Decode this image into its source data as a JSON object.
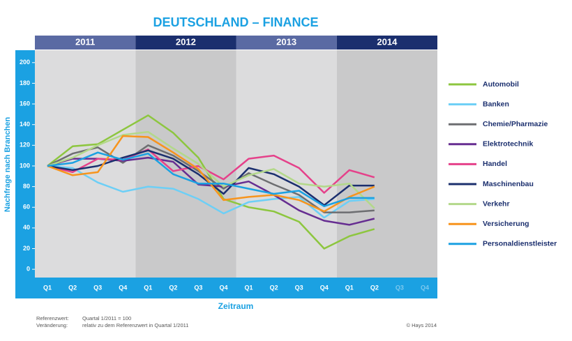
{
  "chart_data": {
    "type": "line",
    "title": "DEUTSCHLAND – FINANCE",
    "years": [
      "2011",
      "2012",
      "2013",
      "2014"
    ],
    "categories": [
      "Q1",
      "Q2",
      "Q3",
      "Q4",
      "Q1",
      "Q2",
      "Q3",
      "Q4",
      "Q1",
      "Q2",
      "Q3",
      "Q4",
      "Q1",
      "Q2",
      "Q3",
      "Q4"
    ],
    "y_label": "Nachfrage nach Branchen",
    "x_label": "Zeitraum",
    "ylim": [
      -8,
      212
    ],
    "yticks": [
      0,
      20,
      40,
      60,
      80,
      100,
      120,
      140,
      160,
      180,
      200
    ],
    "series": [
      {
        "name": "Automobil",
        "color": "#8dc63f",
        "values": [
          100,
          119,
          121,
          135,
          149,
          132,
          108,
          68,
          60,
          56,
          46,
          20,
          32,
          39,
          null,
          null
        ]
      },
      {
        "name": "Banken",
        "color": "#6dcff6",
        "values": [
          100,
          98,
          84,
          75,
          80,
          78,
          68,
          54,
          65,
          68,
          70,
          50,
          66,
          68,
          null,
          null
        ]
      },
      {
        "name": "Chemie/Pharmazie",
        "color": "#6d6e71",
        "values": [
          100,
          112,
          118,
          103,
          120,
          110,
          95,
          78,
          93,
          82,
          72,
          55,
          55,
          57,
          null,
          null
        ]
      },
      {
        "name": "Elektrotechnik",
        "color": "#662d91",
        "values": [
          100,
          107,
          107,
          105,
          108,
          104,
          82,
          80,
          85,
          72,
          57,
          47,
          43,
          49,
          null,
          null
        ]
      },
      {
        "name": "Handel",
        "color": "#e5418a",
        "values": [
          100,
          94,
          107,
          106,
          116,
          95,
          100,
          87,
          107,
          110,
          98,
          74,
          96,
          89,
          null,
          null
        ]
      },
      {
        "name": "Maschinenbau",
        "color": "#1b2f6e",
        "values": [
          100,
          96,
          100,
          108,
          115,
          107,
          92,
          73,
          98,
          92,
          80,
          62,
          81,
          81,
          null,
          null
        ]
      },
      {
        "name": "Verkehr",
        "color": "#b3d88a",
        "values": [
          100,
          108,
          120,
          130,
          133,
          117,
          102,
          80,
          91,
          97,
          83,
          80,
          83,
          59,
          null,
          null
        ]
      },
      {
        "name": "Versicherung",
        "color": "#f7941d",
        "values": [
          100,
          91,
          94,
          129,
          128,
          113,
          97,
          67,
          70,
          72,
          67,
          56,
          70,
          80,
          null,
          null
        ]
      },
      {
        "name": "Personaldienstleister",
        "color": "#1ba1e2",
        "values": [
          100,
          103,
          113,
          106,
          112,
          92,
          83,
          83,
          78,
          73,
          76,
          61,
          69,
          69,
          null,
          null
        ]
      }
    ],
    "notes": {
      "ref_label": "Referenzwert:",
      "ref_text": "Quartal 1/2011 = 100",
      "change_label": "Veränderung:",
      "change_text": "relativ zu dem Referenzwert in Quartal 1/2011",
      "copyright": "© Hays 2014"
    }
  }
}
